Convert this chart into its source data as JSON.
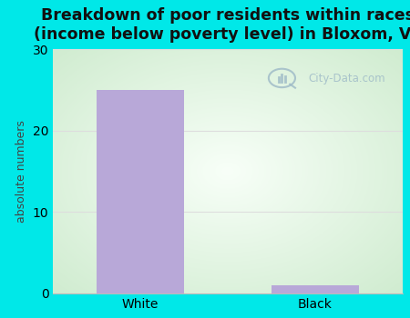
{
  "categories": [
    "White",
    "Black"
  ],
  "values": [
    25,
    1
  ],
  "bar_color": "#b8a8d8",
  "title": "Breakdown of poor residents within races\n(income below poverty level) in Bloxom, VA",
  "ylabel": "absolute numbers",
  "ylim": [
    0,
    30
  ],
  "yticks": [
    0,
    10,
    20,
    30
  ],
  "outer_bg": "#00e8e8",
  "plot_bg_corner": "#d0ecd0",
  "plot_bg_center": "#f0faf5",
  "watermark_text": "City-Data.com",
  "watermark_color": "#a0bcc8",
  "grid_color": "#dddddd",
  "title_fontsize": 12.5,
  "ylabel_fontsize": 9,
  "tick_fontsize": 10,
  "bar_width": 0.5
}
